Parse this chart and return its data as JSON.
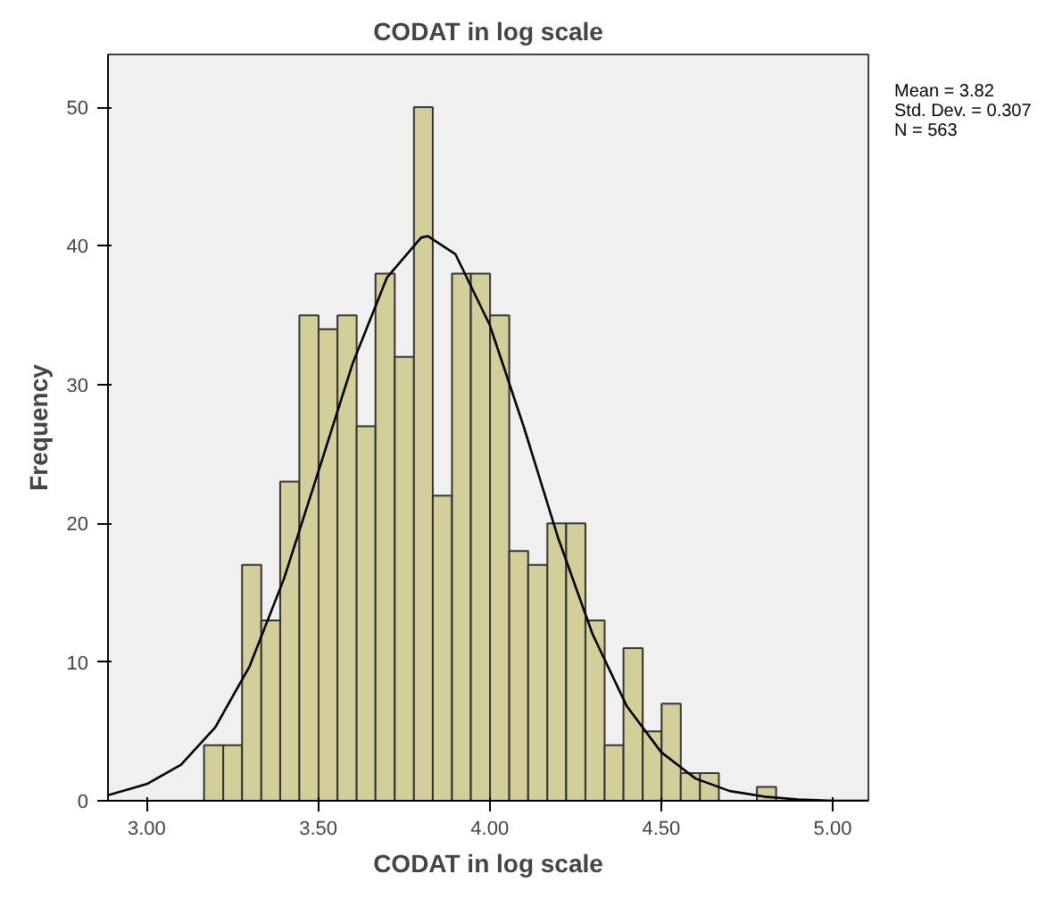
{
  "chart_data": {
    "type": "histogram",
    "title": "CODAT in log scale",
    "xlabel": "CODAT in log scale",
    "ylabel": "Frequency",
    "annotations": [
      "Mean = 3.82",
      "Std. Dev. = 0.307",
      "N = 563"
    ],
    "bins": [
      3.167,
      3.223,
      3.278,
      3.334,
      3.389,
      3.445,
      3.501,
      3.556,
      3.612,
      3.667,
      3.723,
      3.779,
      3.834,
      3.89,
      3.945,
      4.001,
      4.057,
      4.112,
      4.168,
      4.223,
      4.279,
      4.335,
      4.39,
      4.446,
      4.501,
      4.557,
      4.613,
      4.668,
      4.724,
      4.779,
      4.835
    ],
    "series": [
      {
        "type": "histogram",
        "color": "#d4cf9a",
        "values": [
          4,
          4,
          17,
          13,
          23,
          35,
          34,
          35,
          27,
          38,
          32,
          50,
          22,
          38,
          38,
          35,
          18,
          17,
          20,
          20,
          13,
          4,
          11,
          5,
          7,
          2,
          2,
          0,
          0,
          1
        ]
      },
      {
        "type": "line",
        "color": "#000000",
        "x": [
          2.887,
          3.0,
          3.1,
          3.2,
          3.3,
          3.4,
          3.5,
          3.6,
          3.7,
          3.8,
          3.82,
          3.9,
          4.0,
          4.1,
          4.2,
          4.3,
          4.4,
          4.5,
          4.6,
          4.7,
          4.8,
          4.9,
          5.0,
          5.104
        ],
        "values": [
          0.4,
          1.2,
          2.6,
          5.3,
          9.7,
          16.0,
          23.7,
          31.5,
          37.7,
          40.6,
          40.7,
          39.4,
          34.3,
          26.9,
          18.9,
          12.0,
          6.8,
          3.5,
          1.6,
          0.7,
          0.3,
          0.1,
          0.0,
          0.0
        ]
      }
    ],
    "xlim": [
      2.887,
      5.104
    ],
    "xticks": [
      {
        "value": 3,
        "label": "3.00"
      },
      {
        "value": 3.5,
        "label": "3.50"
      },
      {
        "value": 4,
        "label": "4.00"
      },
      {
        "value": 4.5,
        "label": "4.50"
      },
      {
        "value": 5,
        "label": "5.00"
      }
    ],
    "ylim": [
      0,
      53.8
    ],
    "yticks": [
      0,
      10,
      20,
      30,
      40,
      50
    ],
    "grid": false
  }
}
